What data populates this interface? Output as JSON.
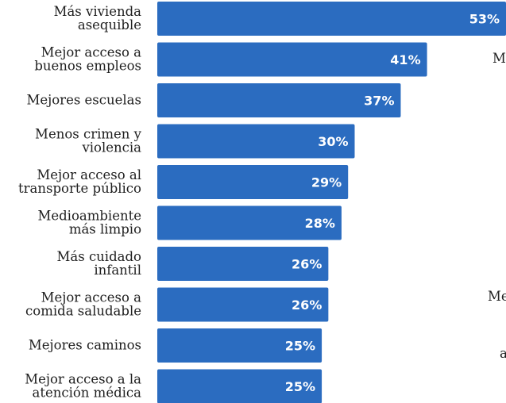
{
  "chart_data": {
    "type": "bar",
    "orientation": "horizontal",
    "categories": [
      [
        "Más vivienda",
        "asequible"
      ],
      [
        "Mejor acceso a",
        "buenos empleos"
      ],
      [
        "Mejores escuelas"
      ],
      [
        "Menos crimen y",
        "violencia"
      ],
      [
        "Mejor acceso al",
        "transporte público"
      ],
      [
        "Medioambiente",
        "más limpio"
      ],
      [
        "Más cuidado",
        "infantil"
      ],
      [
        "Mejor acceso a",
        "comida saludable"
      ],
      [
        "Mejores caminos"
      ],
      [
        "Mejor acceso a la",
        "atención médica"
      ]
    ],
    "values": [
      53,
      41,
      37,
      30,
      29,
      28,
      26,
      26,
      25,
      25
    ],
    "value_labels": [
      "53%",
      "41%",
      "37%",
      "30%",
      "29%",
      "28%",
      "26%",
      "26%",
      "25%",
      "25%"
    ],
    "bar_color": "#2b6cc0",
    "title": "",
    "xlabel": "",
    "ylabel": "",
    "xlim": [
      0,
      53
    ],
    "grid": false
  },
  "side_text": {
    "frag1": "M",
    "frag2": "Me",
    "frag3": "a"
  }
}
